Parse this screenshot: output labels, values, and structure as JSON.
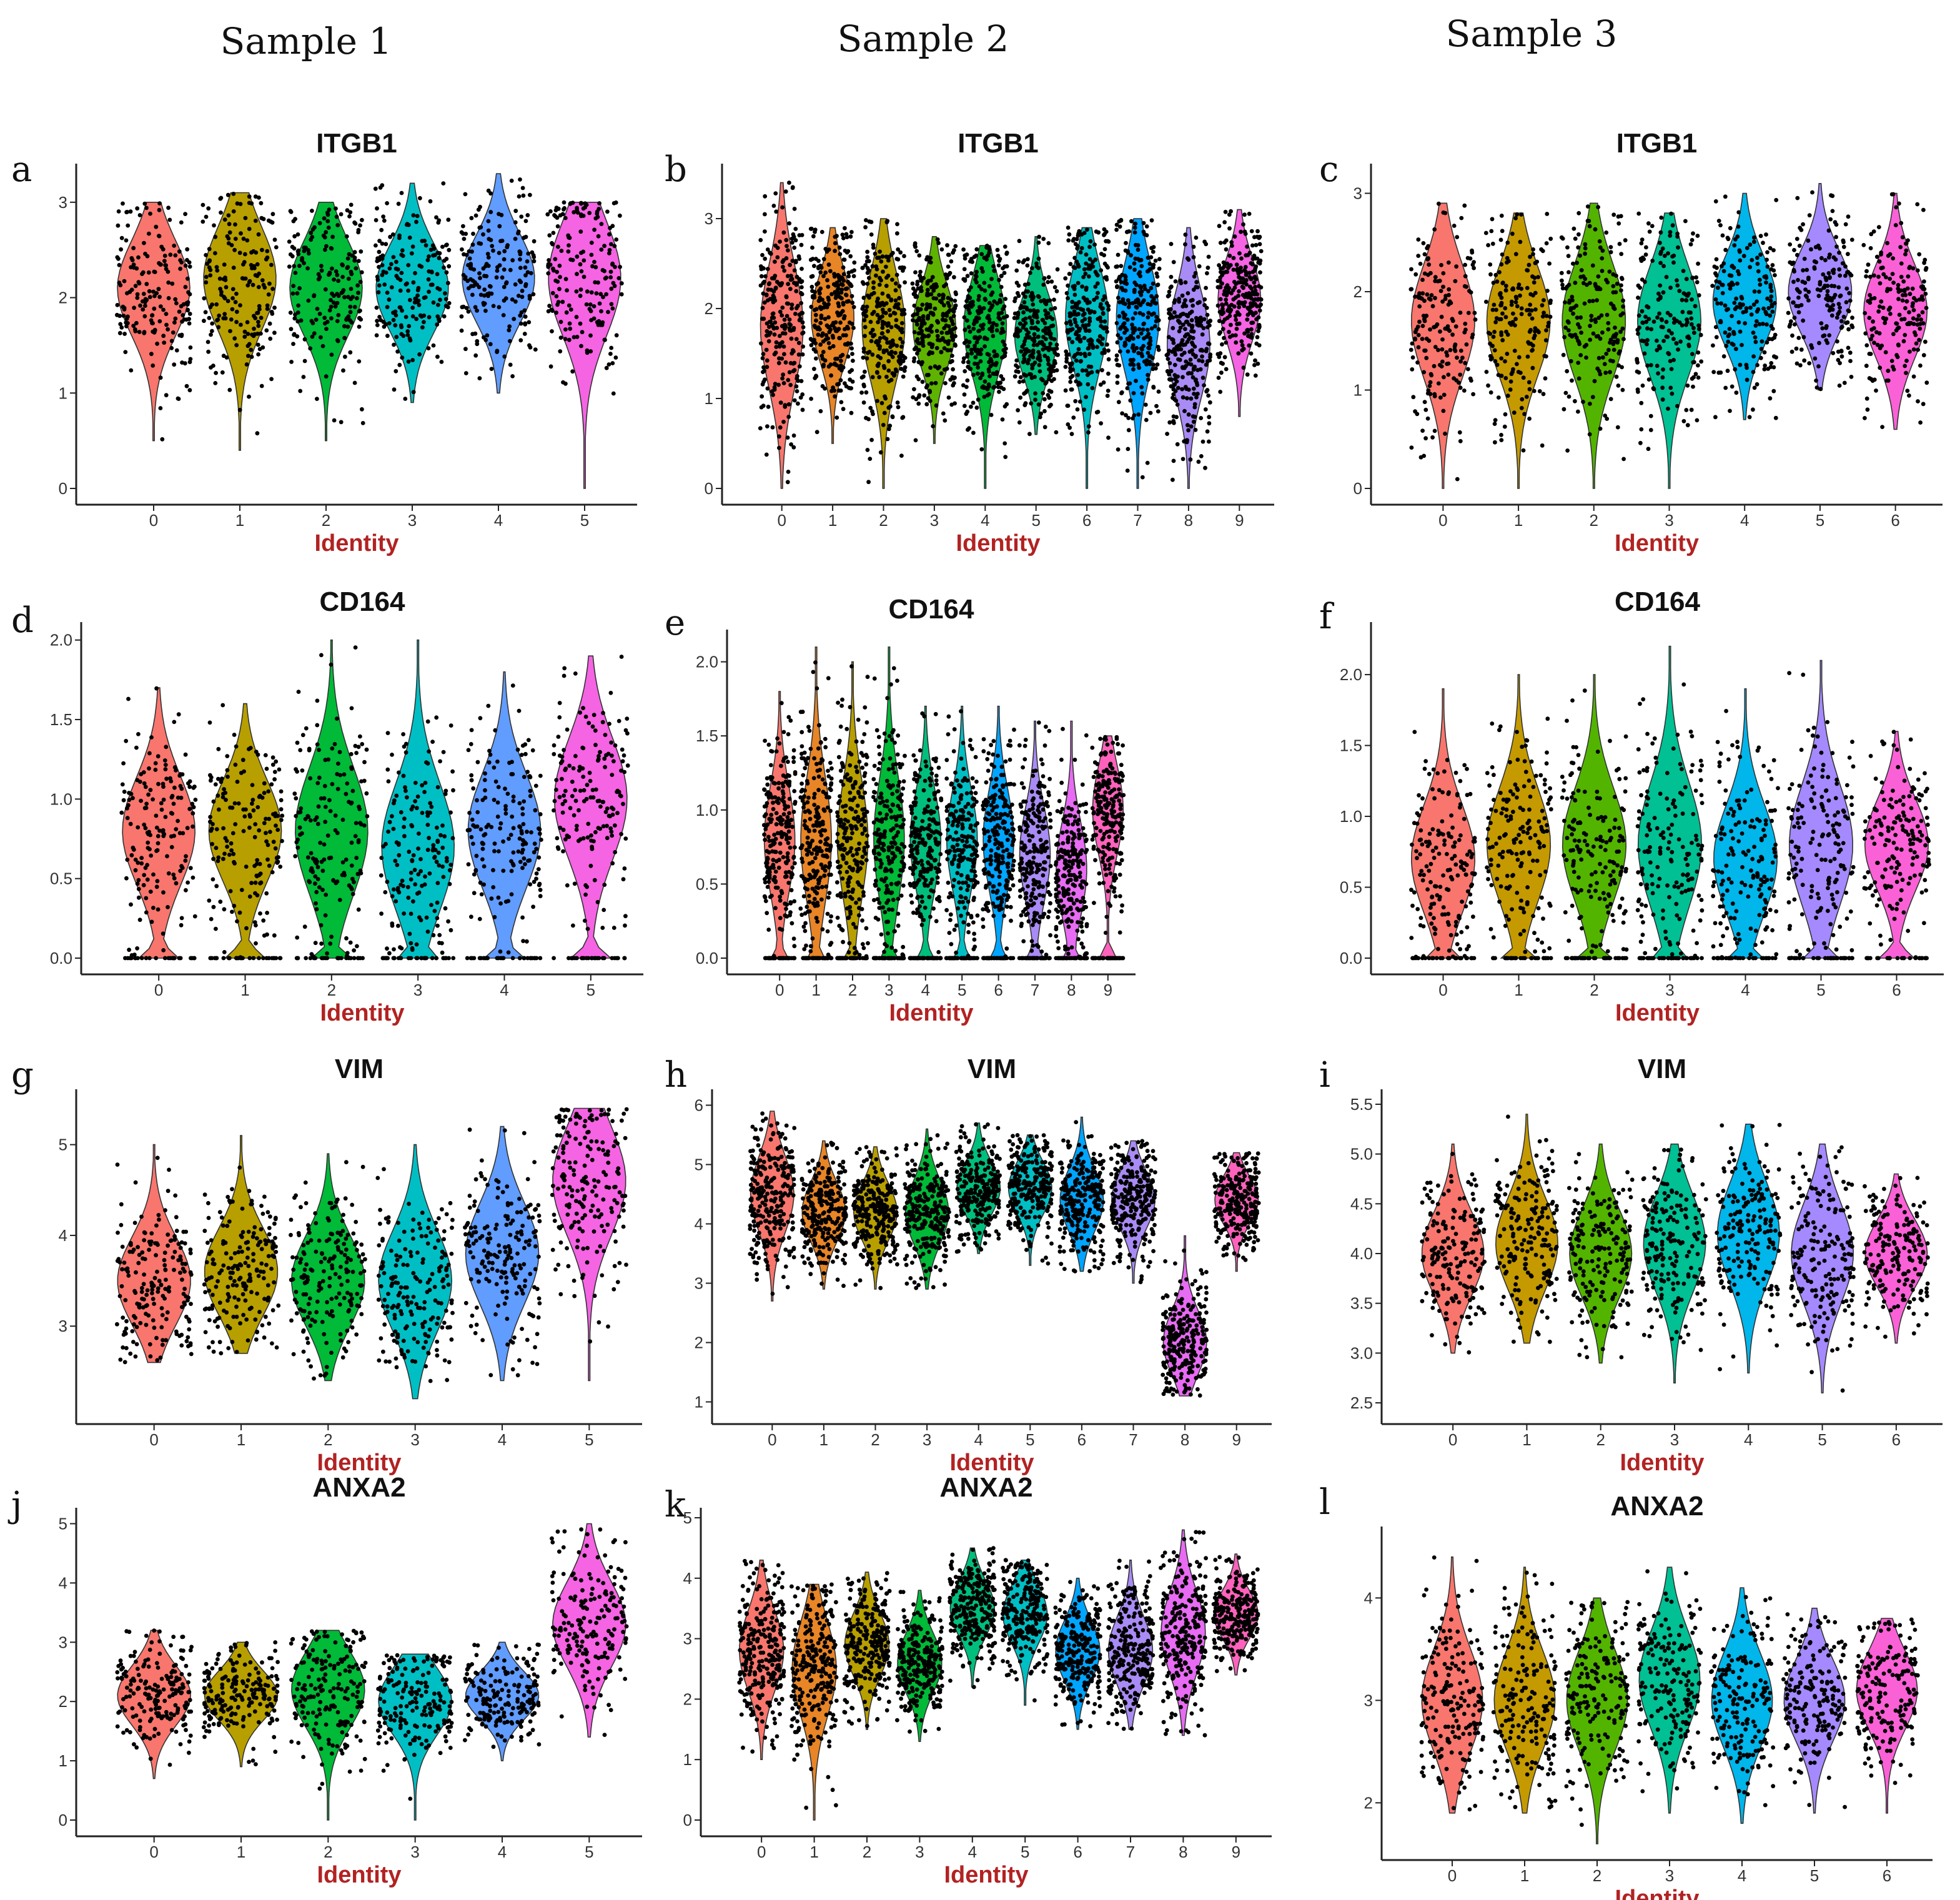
{
  "figure": {
    "sample_titles": [
      "Sample 1",
      "Sample 2",
      "Sample 3"
    ],
    "palette": [
      "#F8766D",
      "#B79F00",
      "#00BA38",
      "#00BFC4",
      "#619CFF",
      "#F564E3",
      "#FF7F0E",
      "#B79F00",
      "#00BFC4",
      "#619CFF",
      "#A98BF5"
    ]
  },
  "chart_data": [
    {
      "panel": "a",
      "type": "violin",
      "title": "ITGB1",
      "xlabel": "Identity",
      "ylabel": "",
      "categories": [
        "0",
        "1",
        "2",
        "3",
        "4",
        "5"
      ],
      "colors": [
        "#F8766D",
        "#B79F00",
        "#00BA38",
        "#00BFC4",
        "#619CFF",
        "#F564E3"
      ],
      "ylim": [
        0,
        3.3
      ],
      "yticks": [
        0,
        1,
        2,
        3
      ],
      "series": [
        {
          "min": 0.5,
          "max": 3.0,
          "center": 2.1
        },
        {
          "min": 0.4,
          "max": 3.1,
          "center": 2.2
        },
        {
          "min": 0.5,
          "max": 3.0,
          "center": 2.1
        },
        {
          "min": 0.9,
          "max": 3.2,
          "center": 2.1
        },
        {
          "min": 1.0,
          "max": 3.3,
          "center": 2.2
        },
        {
          "min": 0.0,
          "max": 3.0,
          "center": 2.2
        }
      ]
    },
    {
      "panel": "b",
      "type": "violin",
      "title": "ITGB1",
      "xlabel": "Identity",
      "ylabel": "",
      "categories": [
        "0",
        "1",
        "2",
        "3",
        "4",
        "5",
        "6",
        "7",
        "8",
        "9"
      ],
      "colors": [
        "#F8766D",
        "#E88526",
        "#B79F00",
        "#5EB300",
        "#00BA38",
        "#00BF7D",
        "#00BFC4",
        "#00A5FF",
        "#A98BF5",
        "#F564E3"
      ],
      "ylim": [
        0,
        3.5
      ],
      "yticks": [
        0,
        1,
        2,
        3
      ],
      "series": [
        {
          "min": 0.0,
          "max": 3.4,
          "center": 1.8
        },
        {
          "min": 0.5,
          "max": 2.9,
          "center": 1.9
        },
        {
          "min": 0.0,
          "max": 3.0,
          "center": 1.8
        },
        {
          "min": 0.5,
          "max": 2.8,
          "center": 1.8
        },
        {
          "min": 0.0,
          "max": 2.7,
          "center": 1.8
        },
        {
          "min": 0.6,
          "max": 2.8,
          "center": 1.7
        },
        {
          "min": 0.0,
          "max": 2.9,
          "center": 1.9
        },
        {
          "min": 0.0,
          "max": 3.0,
          "center": 1.9
        },
        {
          "min": 0.0,
          "max": 2.9,
          "center": 1.6
        },
        {
          "min": 0.8,
          "max": 3.1,
          "center": 2.1
        }
      ]
    },
    {
      "panel": "c",
      "type": "violin",
      "title": "ITGB1",
      "xlabel": "Identity",
      "ylabel": "",
      "categories": [
        "0",
        "1",
        "2",
        "3",
        "4",
        "5",
        "6"
      ],
      "colors": [
        "#F8766D",
        "#C49A00",
        "#53B400",
        "#00C094",
        "#00B6EB",
        "#A58AFF",
        "#FB61D7"
      ],
      "ylim": [
        0,
        3.2
      ],
      "yticks": [
        0,
        1,
        2,
        3
      ],
      "series": [
        {
          "min": 0.0,
          "max": 2.9,
          "center": 1.7
        },
        {
          "min": 0.0,
          "max": 2.8,
          "center": 1.7
        },
        {
          "min": 0.0,
          "max": 2.9,
          "center": 1.7
        },
        {
          "min": 0.0,
          "max": 2.8,
          "center": 1.7
        },
        {
          "min": 0.7,
          "max": 3.0,
          "center": 1.9
        },
        {
          "min": 1.0,
          "max": 3.1,
          "center": 2.0
        },
        {
          "min": 0.6,
          "max": 3.0,
          "center": 1.8
        }
      ]
    },
    {
      "panel": "d",
      "type": "violin",
      "title": "CD164",
      "xlabel": "Identity",
      "ylabel": "",
      "categories": [
        "0",
        "1",
        "2",
        "3",
        "4",
        "5"
      ],
      "colors": [
        "#F8766D",
        "#B79F00",
        "#00BA38",
        "#00BFC4",
        "#619CFF",
        "#F564E3"
      ],
      "ylim": [
        0,
        2.05
      ],
      "yticks": [
        0.0,
        0.5,
        1.0,
        1.5,
        2.0
      ],
      "tick_labels": [
        "0.0",
        "0.5",
        "1.0",
        "1.5",
        "2.0"
      ],
      "series": [
        {
          "min": 0.0,
          "max": 1.7,
          "center": 0.8
        },
        {
          "min": 0.0,
          "max": 1.6,
          "center": 0.8
        },
        {
          "min": 0.0,
          "max": 2.0,
          "center": 0.8
        },
        {
          "min": 0.0,
          "max": 2.0,
          "center": 0.7
        },
        {
          "min": 0.0,
          "max": 1.8,
          "center": 0.8
        },
        {
          "min": 0.0,
          "max": 1.9,
          "center": 1.0
        }
      ]
    },
    {
      "panel": "e",
      "type": "violin",
      "title": "CD164",
      "xlabel": "Identity",
      "ylabel": "",
      "categories": [
        "0",
        "1",
        "2",
        "3",
        "4",
        "5",
        "6",
        "7",
        "8",
        "9"
      ],
      "colors": [
        "#F8766D",
        "#E88526",
        "#B79F00",
        "#00BA38",
        "#00BF7D",
        "#00BFC4",
        "#00A5FF",
        "#A98BF5",
        "#E76BF3",
        "#FF62BC"
      ],
      "ylim": [
        0,
        2.15
      ],
      "yticks": [
        0.0,
        0.5,
        1.0,
        1.5,
        2.0
      ],
      "tick_labels": [
        "0.0",
        "0.5",
        "1.0",
        "1.5",
        "2.0"
      ],
      "series": [
        {
          "min": 0.0,
          "max": 1.8,
          "center": 0.8
        },
        {
          "min": 0.0,
          "max": 2.1,
          "center": 0.8
        },
        {
          "min": 0.0,
          "max": 2.0,
          "center": 0.8
        },
        {
          "min": 0.0,
          "max": 2.1,
          "center": 0.8
        },
        {
          "min": 0.0,
          "max": 1.7,
          "center": 0.8
        },
        {
          "min": 0.0,
          "max": 1.7,
          "center": 0.8
        },
        {
          "min": 0.0,
          "max": 1.7,
          "center": 0.8
        },
        {
          "min": 0.0,
          "max": 1.6,
          "center": 0.7
        },
        {
          "min": 0.0,
          "max": 1.6,
          "center": 0.6
        },
        {
          "min": 0.0,
          "max": 1.5,
          "center": 1.0
        }
      ]
    },
    {
      "panel": "f",
      "type": "violin",
      "title": "CD164",
      "xlabel": "Identity",
      "ylabel": "",
      "categories": [
        "0",
        "1",
        "2",
        "3",
        "4",
        "5",
        "6"
      ],
      "colors": [
        "#F8766D",
        "#C49A00",
        "#53B400",
        "#00C094",
        "#00B6EB",
        "#A58AFF",
        "#FB61D7"
      ],
      "ylim": [
        0,
        2.3
      ],
      "yticks": [
        0.0,
        0.5,
        1.0,
        1.5,
        2.0
      ],
      "tick_labels": [
        "0.0",
        "0.5",
        "1.0",
        "1.5",
        "2.0"
      ],
      "series": [
        {
          "min": 0.0,
          "max": 1.9,
          "center": 0.7
        },
        {
          "min": 0.0,
          "max": 2.0,
          "center": 0.8
        },
        {
          "min": 0.0,
          "max": 2.0,
          "center": 0.8
        },
        {
          "min": 0.0,
          "max": 2.2,
          "center": 0.8
        },
        {
          "min": 0.0,
          "max": 1.9,
          "center": 0.7
        },
        {
          "min": 0.0,
          "max": 2.1,
          "center": 0.8
        },
        {
          "min": 0.0,
          "max": 1.6,
          "center": 0.8
        }
      ]
    },
    {
      "panel": "g",
      "type": "violin",
      "title": "VIM",
      "xlabel": "Identity",
      "ylabel": "",
      "categories": [
        "0",
        "1",
        "2",
        "3",
        "4",
        "5"
      ],
      "colors": [
        "#F8766D",
        "#B79F00",
        "#00BA38",
        "#00BFC4",
        "#619CFF",
        "#F564E3"
      ],
      "ylim": [
        2.1,
        5.5
      ],
      "yticks": [
        3,
        4,
        5
      ],
      "series": [
        {
          "min": 2.6,
          "max": 5.0,
          "center": 3.5
        },
        {
          "min": 2.7,
          "max": 5.1,
          "center": 3.6
        },
        {
          "min": 2.4,
          "max": 4.9,
          "center": 3.5
        },
        {
          "min": 2.2,
          "max": 5.0,
          "center": 3.5
        },
        {
          "min": 2.4,
          "max": 5.2,
          "center": 3.8
        },
        {
          "min": 2.4,
          "max": 5.4,
          "center": 4.6
        }
      ]
    },
    {
      "panel": "h",
      "type": "violin",
      "title": "VIM",
      "xlabel": "Identity",
      "ylabel": "",
      "categories": [
        "0",
        "1",
        "2",
        "3",
        "4",
        "5",
        "6",
        "7",
        "8",
        "9"
      ],
      "colors": [
        "#F8766D",
        "#E88526",
        "#B79F00",
        "#00BA38",
        "#00BF7D",
        "#00BFC4",
        "#00A5FF",
        "#A98BF5",
        "#E76BF3",
        "#FF62BC"
      ],
      "ylim": [
        0.9,
        6.1
      ],
      "yticks": [
        1,
        2,
        3,
        4,
        5,
        6
      ],
      "series": [
        {
          "min": 2.7,
          "max": 5.9,
          "center": 4.5
        },
        {
          "min": 2.9,
          "max": 5.4,
          "center": 4.2
        },
        {
          "min": 2.9,
          "max": 5.3,
          "center": 4.2
        },
        {
          "min": 2.9,
          "max": 5.6,
          "center": 4.2
        },
        {
          "min": 3.5,
          "max": 5.7,
          "center": 4.6
        },
        {
          "min": 3.3,
          "max": 5.5,
          "center": 4.6
        },
        {
          "min": 3.2,
          "max": 5.8,
          "center": 4.4
        },
        {
          "min": 3.0,
          "max": 5.4,
          "center": 4.4
        },
        {
          "min": 1.1,
          "max": 3.8,
          "center": 2.0
        },
        {
          "min": 3.2,
          "max": 5.2,
          "center": 4.4
        }
      ]
    },
    {
      "panel": "i",
      "type": "violin",
      "title": "VIM",
      "xlabel": "Identity",
      "ylabel": "",
      "categories": [
        "0",
        "1",
        "2",
        "3",
        "4",
        "5",
        "6"
      ],
      "colors": [
        "#F8766D",
        "#C49A00",
        "#53B400",
        "#00C094",
        "#00B6EB",
        "#A58AFF",
        "#FB61D7"
      ],
      "ylim": [
        2.45,
        5.55
      ],
      "yticks": [
        2.5,
        3.0,
        3.5,
        4.0,
        4.5,
        5.0,
        5.5
      ],
      "tick_labels": [
        "2.5",
        "3.0",
        "3.5",
        "4.0",
        "4.5",
        "5.0",
        "5.5"
      ],
      "series": [
        {
          "min": 3.0,
          "max": 5.1,
          "center": 4.0
        },
        {
          "min": 3.1,
          "max": 5.4,
          "center": 4.1
        },
        {
          "min": 2.9,
          "max": 5.1,
          "center": 4.0
        },
        {
          "min": 2.7,
          "max": 5.1,
          "center": 4.1
        },
        {
          "min": 2.8,
          "max": 5.3,
          "center": 4.2
        },
        {
          "min": 2.6,
          "max": 5.1,
          "center": 4.0
        },
        {
          "min": 3.1,
          "max": 4.8,
          "center": 4.0
        }
      ]
    },
    {
      "panel": "j",
      "type": "violin",
      "title": "ANXA2",
      "xlabel": "Identity",
      "ylabel": "",
      "categories": [
        "0",
        "1",
        "2",
        "3",
        "4",
        "5"
      ],
      "colors": [
        "#F8766D",
        "#B79F00",
        "#00BA38",
        "#00BFC4",
        "#619CFF",
        "#F564E3"
      ],
      "ylim": [
        0,
        5.1
      ],
      "yticks": [
        0,
        1,
        2,
        3,
        4,
        5
      ],
      "series": [
        {
          "min": 0.7,
          "max": 3.2,
          "center": 2.1
        },
        {
          "min": 0.9,
          "max": 3.0,
          "center": 2.1
        },
        {
          "min": 0.0,
          "max": 3.2,
          "center": 2.2
        },
        {
          "min": 0.0,
          "max": 2.8,
          "center": 2.0
        },
        {
          "min": 1.0,
          "max": 3.0,
          "center": 2.1
        },
        {
          "min": 1.4,
          "max": 5.0,
          "center": 3.3
        }
      ]
    },
    {
      "panel": "k",
      "type": "violin",
      "title": "ANXA2",
      "xlabel": "Identity",
      "ylabel": "",
      "categories": [
        "0",
        "1",
        "2",
        "3",
        "4",
        "5",
        "6",
        "7",
        "8",
        "9"
      ],
      "colors": [
        "#F8766D",
        "#E88526",
        "#B79F00",
        "#00BA38",
        "#00BF7D",
        "#00BFC4",
        "#00A5FF",
        "#A98BF5",
        "#E76BF3",
        "#FF62BC"
      ],
      "ylim": [
        0,
        5.0
      ],
      "yticks": [
        0,
        1,
        2,
        3,
        4,
        5
      ],
      "series": [
        {
          "min": 1.0,
          "max": 4.3,
          "center": 2.8
        },
        {
          "min": 0.0,
          "max": 3.9,
          "center": 2.5
        },
        {
          "min": 1.5,
          "max": 4.1,
          "center": 2.9
        },
        {
          "min": 1.3,
          "max": 3.8,
          "center": 2.6
        },
        {
          "min": 2.2,
          "max": 4.5,
          "center": 3.5
        },
        {
          "min": 1.9,
          "max": 4.3,
          "center": 3.4
        },
        {
          "min": 1.5,
          "max": 4.0,
          "center": 2.8
        },
        {
          "min": 1.5,
          "max": 4.3,
          "center": 2.8
        },
        {
          "min": 1.4,
          "max": 4.8,
          "center": 3.1
        },
        {
          "min": 2.4,
          "max": 4.4,
          "center": 3.4
        }
      ]
    },
    {
      "panel": "l",
      "type": "violin",
      "title": "ANXA2",
      "xlabel": "Identity",
      "ylabel": "",
      "categories": [
        "0",
        "1",
        "2",
        "3",
        "4",
        "5",
        "6"
      ],
      "colors": [
        "#F8766D",
        "#C49A00",
        "#53B400",
        "#00C094",
        "#00B6EB",
        "#A58AFF",
        "#FB61D7"
      ],
      "ylim": [
        1.6,
        4.6
      ],
      "yticks": [
        2,
        3,
        4
      ],
      "series": [
        {
          "min": 1.9,
          "max": 4.4,
          "center": 3.0
        },
        {
          "min": 1.9,
          "max": 4.3,
          "center": 3.0
        },
        {
          "min": 1.6,
          "max": 4.0,
          "center": 3.0
        },
        {
          "min": 1.9,
          "max": 4.3,
          "center": 3.2
        },
        {
          "min": 1.8,
          "max": 4.1,
          "center": 3.0
        },
        {
          "min": 1.9,
          "max": 3.9,
          "center": 3.0
        },
        {
          "min": 1.9,
          "max": 3.8,
          "center": 3.1
        }
      ]
    }
  ]
}
